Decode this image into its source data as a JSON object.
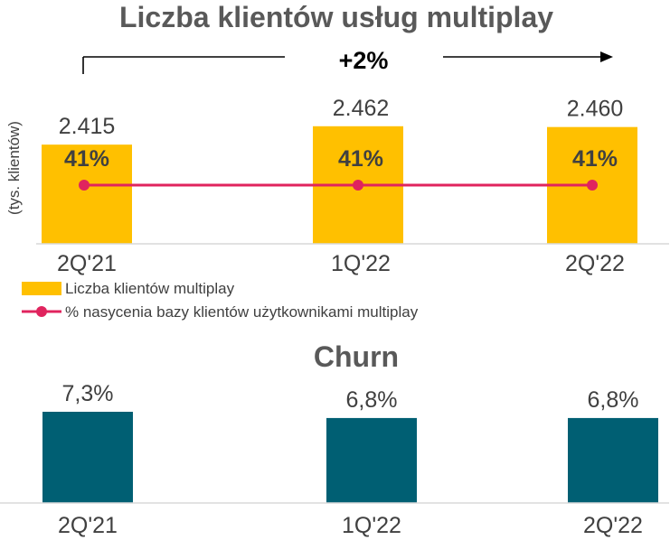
{
  "chart_data": [
    {
      "type": "bar",
      "title": "Liczba klientów usług multiplay",
      "ylabel": "(tys. klientów)",
      "growth_label": "+2%",
      "categories": [
        "2Q'21",
        "1Q'22",
        "2Q'22"
      ],
      "series": [
        {
          "name": "Liczba klientów multiplay",
          "type": "bar",
          "values": [
            2415,
            2462,
            2460
          ],
          "value_labels": [
            "2.415",
            "2.462",
            "2.460"
          ],
          "color": "#FFC000"
        },
        {
          "name": "% nasycenia bazy klientów użytkownikami multiplay",
          "type": "line",
          "values": [
            41,
            41,
            41
          ],
          "value_labels": [
            "41%",
            "41%",
            "41%"
          ],
          "color": "#E0245E"
        }
      ]
    },
    {
      "type": "bar",
      "title": "Churn",
      "categories": [
        "2Q'21",
        "1Q'22",
        "2Q'22"
      ],
      "series": [
        {
          "values": [
            7.3,
            6.8,
            6.8
          ],
          "value_labels": [
            "7,3%",
            "6,8%",
            "6,8%"
          ],
          "color": "#005F73"
        }
      ]
    }
  ]
}
